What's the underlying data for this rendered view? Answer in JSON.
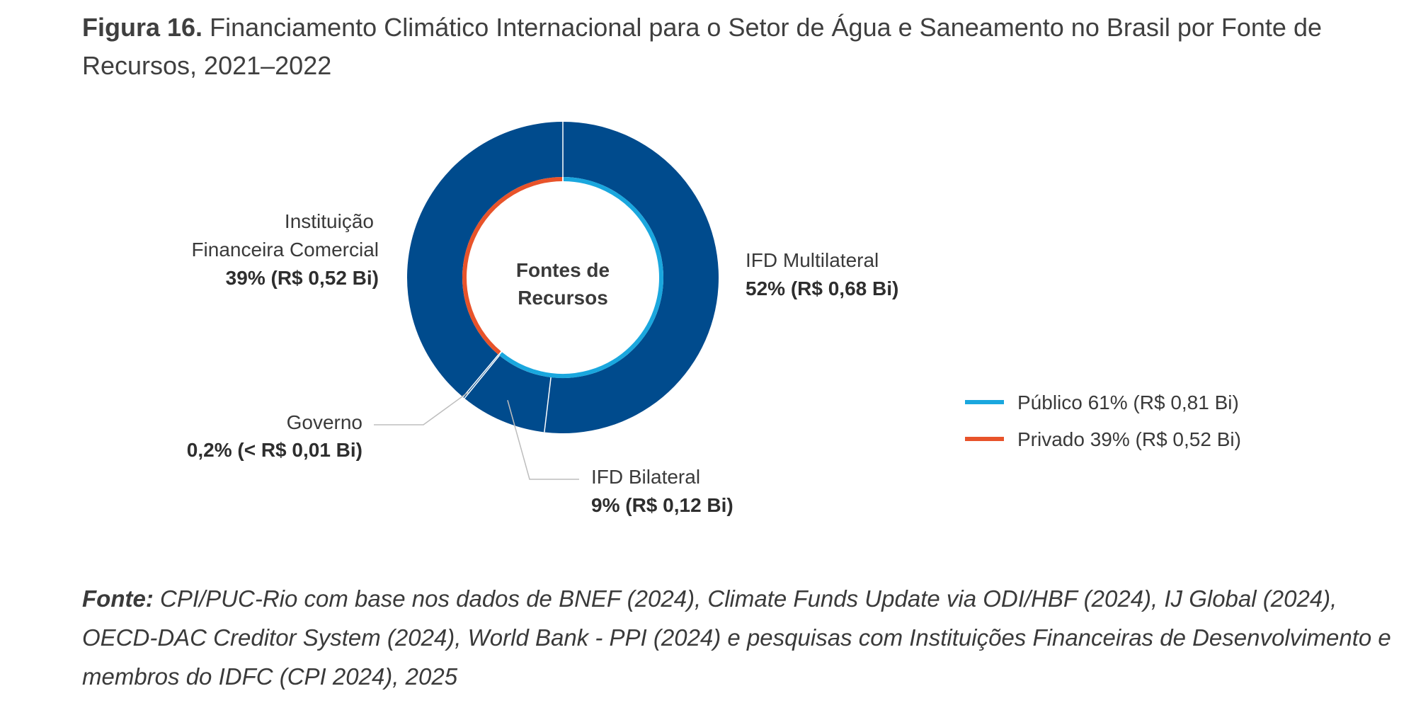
{
  "title": {
    "figure_label": "Figura 16.",
    "text": "Financiamento Climático Internacional para o Setor de Água e Saneamento no Brasil por Fonte de Recursos, 2021–2022"
  },
  "chart_data": {
    "type": "pie",
    "center_label": [
      "Fontes de",
      "Recursos"
    ],
    "outer_ring": {
      "slices": [
        {
          "name": "IFD Multilateral",
          "percent": 52,
          "label_value": "52% (R$ 0,68 Bi)",
          "color": "#004b8d"
        },
        {
          "name": "IFD Bilateral",
          "percent": 9,
          "label_value": "9% (R$ 0,12 Bi)",
          "color": "#004b8d"
        },
        {
          "name": "Governo",
          "percent": 0.2,
          "label_value": "0,2% (< R$ 0,01 Bi)",
          "color": "#004b8d"
        },
        {
          "name": "Instituição Financeira Comercial",
          "name_lines": [
            "Instituição",
            "Financeira Comercial"
          ],
          "percent": 39,
          "label_value": "39% (R$ 0,52 Bi)",
          "color": "#004b8d"
        }
      ]
    },
    "inner_ring": {
      "slices": [
        {
          "name": "Público",
          "percent": 61,
          "color": "#1aa7de"
        },
        {
          "name": "Privado",
          "percent": 39,
          "color": "#e8532a"
        }
      ]
    },
    "legend": {
      "placement": "right",
      "items": [
        {
          "label": "Público 61% (R$ 0,81 Bi)",
          "color": "#1aa7de"
        },
        {
          "label": "Privado 39% (R$ 0,52 Bi)",
          "color": "#e8532a"
        }
      ]
    }
  },
  "source": {
    "label": "Fonte:",
    "text": "CPI/PUC-Rio com base nos dados de BNEF (2024), Climate Funds Update via ODI/HBF (2024), IJ Global (2024), OECD-DAC Creditor System (2024), World Bank - PPI (2024) e pesquisas com Instituições Financeiras de Desenvolvimento e membros do IDFC (CPI 2024), 2025"
  }
}
